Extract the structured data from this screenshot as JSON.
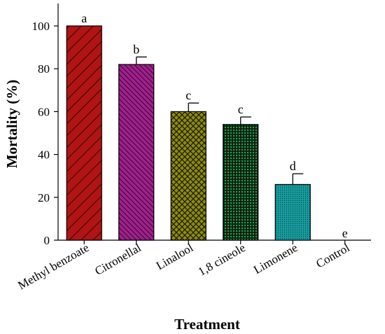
{
  "chart_data": {
    "type": "bar",
    "title": "",
    "xlabel": "Treatment",
    "ylabel": "Mortality (%)",
    "ylim": [
      0,
      110
    ],
    "yticks": [
      0,
      20,
      40,
      60,
      80,
      100
    ],
    "grid": false,
    "legend": "none",
    "categories": [
      "Methyl benzoate",
      "Citronellal",
      "Linalool",
      "1,8 cineole",
      "Limonene",
      "Control"
    ],
    "values": [
      100,
      82,
      60,
      54,
      26,
      0
    ],
    "errors": [
      0,
      3.5,
      4,
      3.5,
      5,
      0
    ],
    "letters": [
      "a",
      "b",
      "c",
      "c",
      "d",
      "e"
    ],
    "colors": [
      "#b01414",
      "#a0208c",
      "#8c8c14",
      "#0f6e28",
      "#189ea0",
      "#ffffff"
    ],
    "patterns": [
      "diagonal-stripes",
      "dense-diagonal-stripes",
      "crosshatch",
      "dots",
      "fine-dots",
      "none"
    ]
  }
}
